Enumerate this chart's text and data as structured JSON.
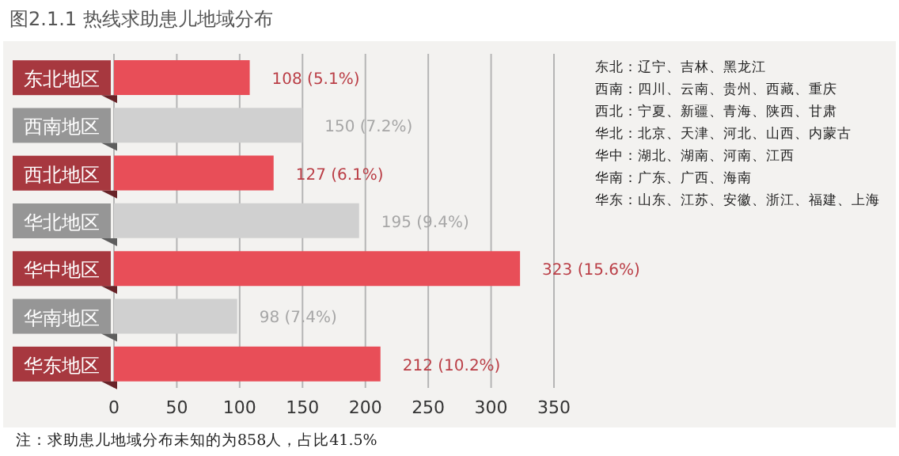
{
  "chart_data": {
    "type": "bar",
    "orientation": "horizontal",
    "title": "图2.1.1 热线求助患儿地域分布",
    "categories": [
      "东北地区",
      "西南地区",
      "西北地区",
      "华北地区",
      "华中地区",
      "华南地区",
      "华东地区"
    ],
    "values": [
      108,
      150,
      127,
      195,
      323,
      98,
      212
    ],
    "colors": [
      "#e84e58",
      "#d0d0d0",
      "#e84e58",
      "#d0d0d0",
      "#e84e58",
      "#d0d0d0",
      "#e84e58"
    ],
    "value_labels": [
      "108 (5.1%)",
      "150 (7.2%)",
      "127 (6.1%)",
      "195 (9.4%)",
      "323 (15.6%)",
      "98 (7.4%)",
      "212 (10.2%)"
    ],
    "xlim": [
      0,
      350
    ],
    "xticks": [
      0,
      50,
      100,
      150,
      200,
      250,
      300,
      350
    ],
    "grid": "x",
    "legend": false,
    "annotations": [
      "东北：辽宁、吉林、黑龙江",
      "西南：四川、云南、贵州、西藏、重庆",
      "西北：宁夏、新疆、青海、陕西、甘肃",
      "华北：北京、天津、河北、山西、内蒙古",
      "华中：湖北、湖南、河南、江西",
      "华南：广东、广西、海南",
      "华东：山东、江苏、安徽、浙江、福建、上海",
      "注：求助患儿地域分布未知的为858人，占比41.5%"
    ]
  }
}
